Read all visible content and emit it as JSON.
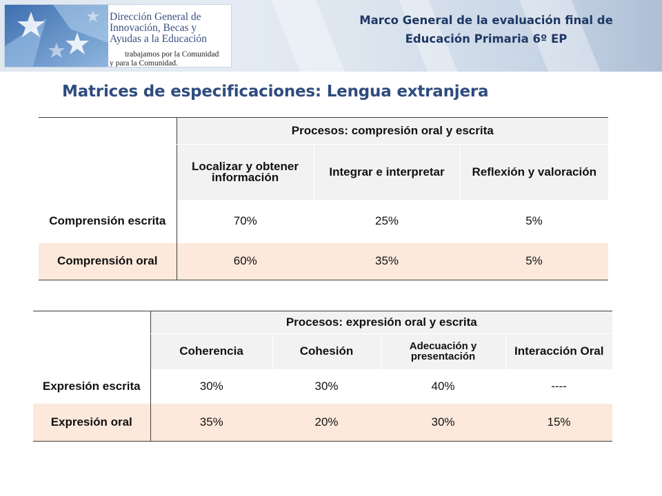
{
  "logo": {
    "lines": [
      "Dirección General de",
      "Innovación, Becas y",
      "Ayudas a la Educación"
    ],
    "tagline": [
      "trabajamos por la Comunidad",
      "y para la Comunidad."
    ]
  },
  "header": {
    "title_line1": "Marco General de la evaluación final de",
    "title_line2": "Educación Primaria 6º EP"
  },
  "slide": {
    "title": "Matrices de especificaciones: Lengua extranjera"
  },
  "table1": {
    "group_header": "Procesos: compresión oral y escrita",
    "columns": [
      "Localizar y obtener información",
      "Integrar e interpretar",
      "Reflexión y valoración"
    ],
    "rows": [
      {
        "label": "Comprensión escrita",
        "values": [
          "70%",
          "25%",
          "5%"
        ]
      },
      {
        "label": "Comprensión oral",
        "values": [
          "60%",
          "35%",
          "5%"
        ]
      }
    ]
  },
  "table2": {
    "group_header": "Procesos: expresión oral y escrita",
    "columns": [
      "Coherencia",
      "Cohesión",
      "Adecuación y presentación",
      "Interacción Oral"
    ],
    "rows": [
      {
        "label": "Expresión escrita",
        "values": [
          "30%",
          "30%",
          "40%",
          "----"
        ]
      },
      {
        "label": "Expresión oral",
        "values": [
          "35%",
          "20%",
          "30%",
          "15%"
        ]
      }
    ]
  },
  "colors": {
    "title_blue": "#2e4c7e",
    "header_navy": "#1f3864",
    "peach_row": "#fce9db",
    "header_gray": "#f2f2f2"
  }
}
